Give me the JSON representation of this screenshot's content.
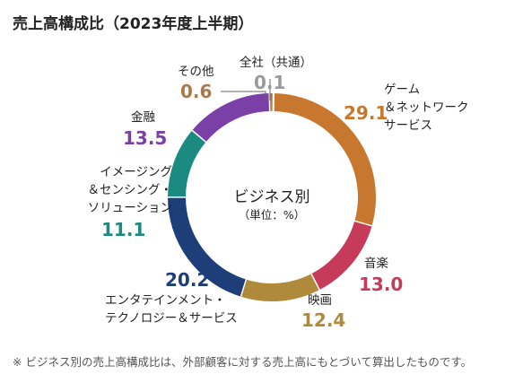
{
  "title": "売上高構成比（2023年度上半期）",
  "note": "※ ビジネス別の売上高構成比は、外部顧客に対する売上高にもとづいて算出したものです。",
  "chart_data": {
    "type": "pie",
    "title": "売上高構成比（2023年度上半期）",
    "center_title": "ビジネス別",
    "center_unit": "（単位：%）",
    "donut": true,
    "segments": [
      {
        "name_lines": [
          "ゲーム",
          "＆ネットワーク",
          "サービス"
        ],
        "value": 29.1,
        "value_label": "29.1",
        "color": "#c8782e"
      },
      {
        "name_lines": [
          "音楽"
        ],
        "value": 13.0,
        "value_label": "13.0",
        "color": "#c63b5a"
      },
      {
        "name_lines": [
          "映画"
        ],
        "value": 12.4,
        "value_label": "12.4",
        "color": "#ae8a3a"
      },
      {
        "name_lines": [
          "エンタテインメント・",
          "テクノロジー＆サービス"
        ],
        "value": 20.2,
        "value_label": "20.2",
        "color": "#1d3e78"
      },
      {
        "name_lines": [
          "イメージング",
          "＆センシング・",
          "ソリューション"
        ],
        "value": 11.1,
        "value_label": "11.1",
        "color": "#1b8a80"
      },
      {
        "name_lines": [
          "金融"
        ],
        "value": 13.5,
        "value_label": "13.5",
        "color": "#7b3fa8"
      },
      {
        "name_lines": [
          "その他"
        ],
        "value": 0.6,
        "value_label": "0.6",
        "color": "#a8794a"
      },
      {
        "name_lines": [
          "全社（共通）"
        ],
        "value": 0.1,
        "value_label": "0.1",
        "color": "#b0b0b0"
      }
    ]
  }
}
